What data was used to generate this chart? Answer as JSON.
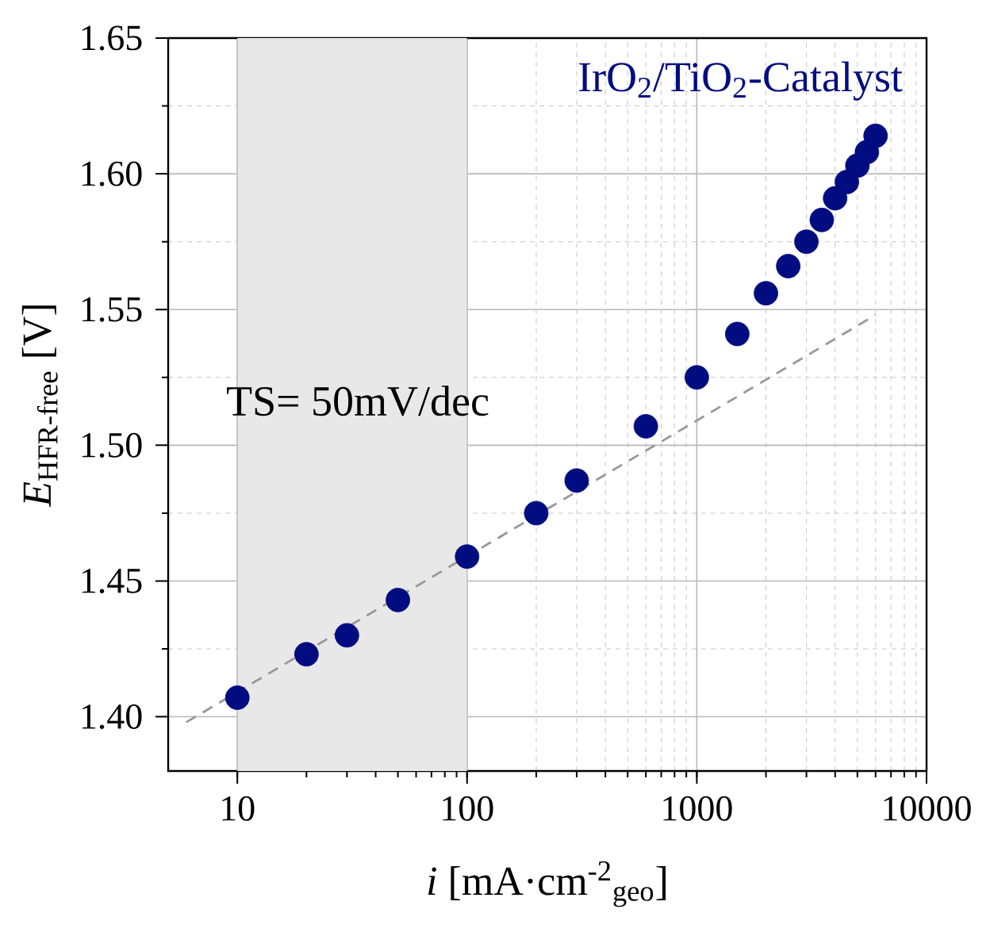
{
  "chart_data": {
    "type": "scatter",
    "xlabel": "*i* [mA·cm$^{-2}$$_{geo}$]",
    "ylabel": "*E*$_{HFR-free}$ [V]",
    "log": "x",
    "xlim": [
      5,
      10000
    ],
    "ylim": [
      1.38,
      1.65
    ],
    "xticks": [
      10,
      100,
      1000,
      10000
    ],
    "yticks": [
      {
        "value": 1.4,
        "label": "1.40"
      },
      {
        "value": 1.45,
        "label": "1.45"
      },
      {
        "value": 1.5,
        "label": "1.50"
      },
      {
        "value": 1.55,
        "label": "1.55"
      },
      {
        "value": 1.6,
        "label": "1.60"
      },
      {
        "value": 1.65,
        "label": "1.65"
      }
    ],
    "grid": true,
    "bands": [
      {
        "axis": "x",
        "from": 10,
        "to": 100,
        "color": "#e8e8e8"
      }
    ],
    "annotations": [
      "TS= 50mV/dec"
    ],
    "series": [
      {
        "name": "IrO$_{2}$/TiO$_{2}$-Catalyst",
        "marker": "circle",
        "color": "#000c80",
        "x": [
          10,
          20,
          30,
          50,
          100,
          200,
          300,
          600,
          1000,
          1500,
          2000,
          2500,
          3000,
          3500,
          4000,
          4500,
          5000,
          5500,
          6000
        ],
        "values": [
          1.407,
          1.423,
          1.43,
          1.443,
          1.459,
          1.475,
          1.487,
          1.507,
          1.525,
          1.541,
          1.556,
          1.566,
          1.575,
          1.583,
          1.591,
          1.597,
          1.603,
          1.608,
          1.614
        ]
      },
      {
        "type": "line",
        "marker": "none",
        "line_style": "dashed",
        "color": "#999999",
        "x": [
          6,
          6000
        ],
        "values": [
          1.398,
          1.548
        ]
      }
    ]
  }
}
